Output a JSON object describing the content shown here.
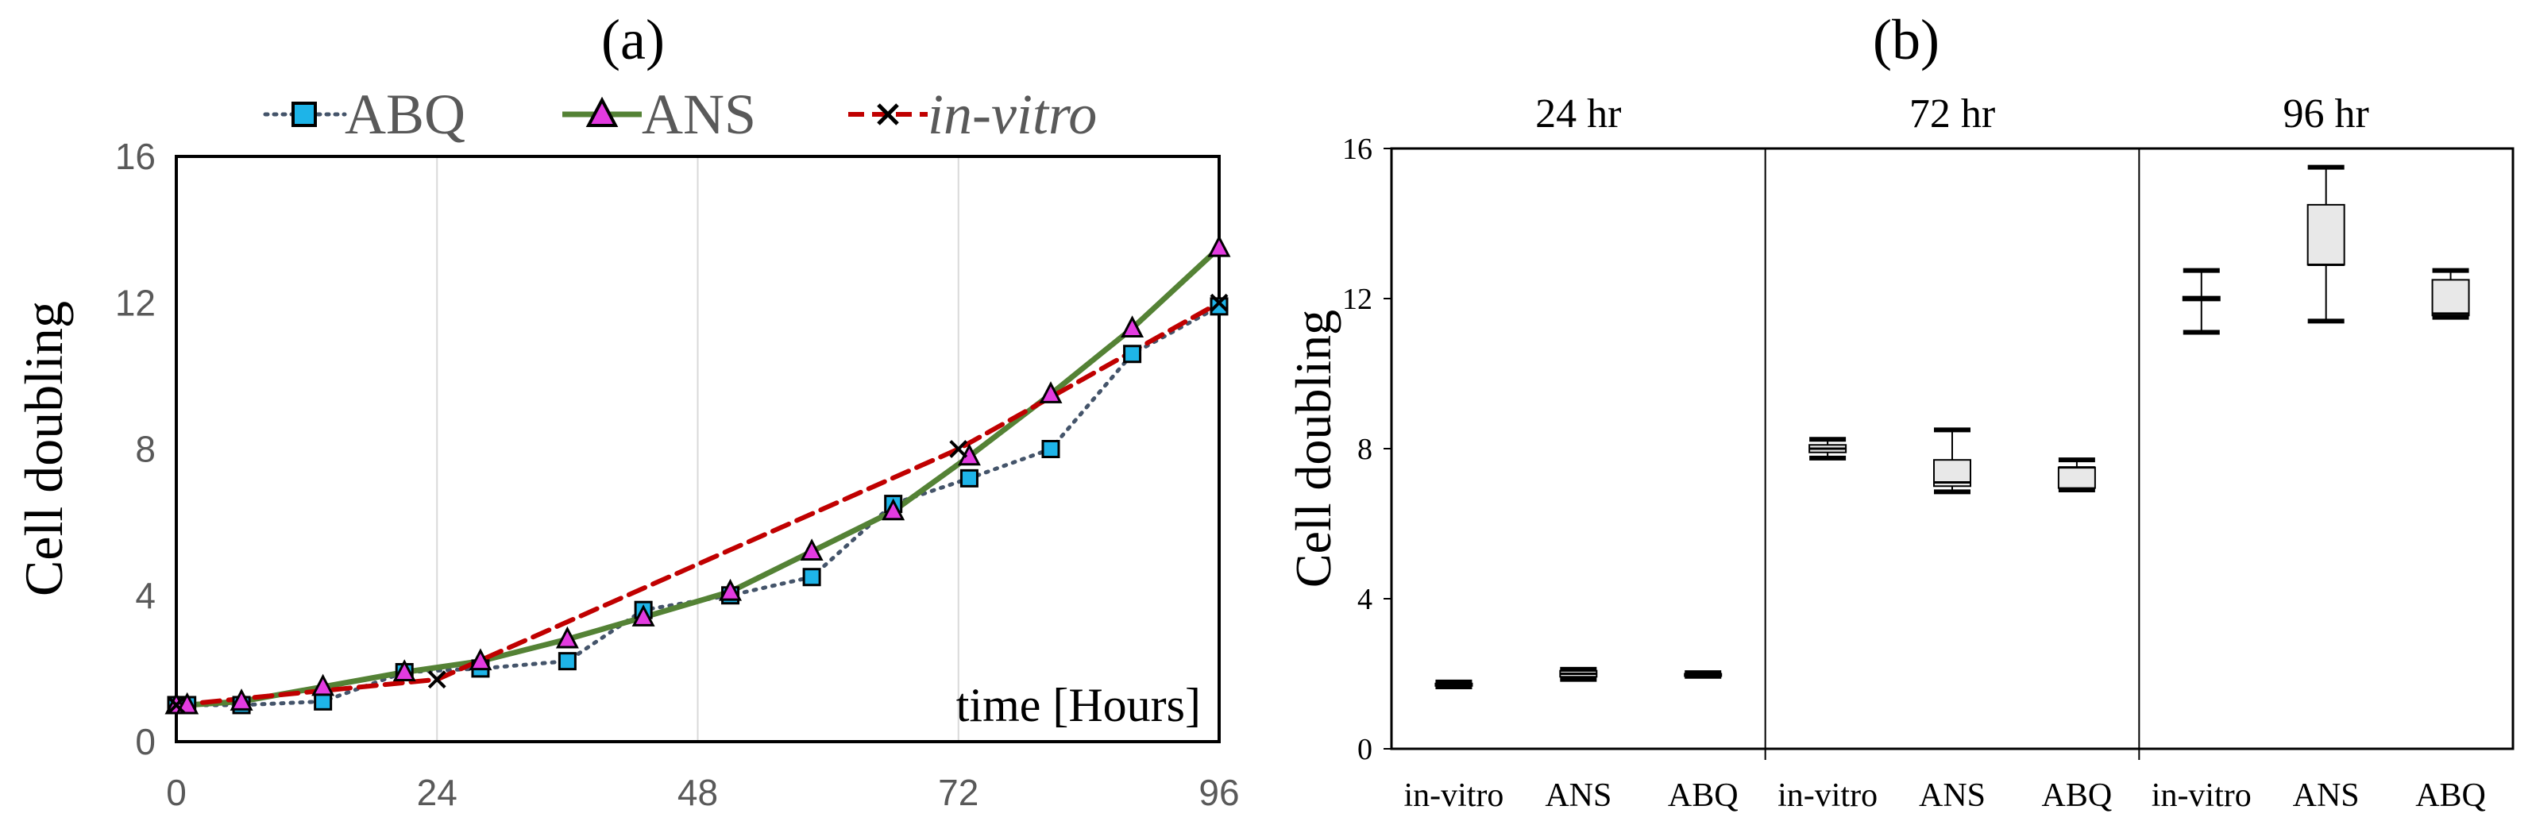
{
  "colors": {
    "abq_line": "#44546a",
    "abq_marker": "#1eb4e8",
    "ans_line": "#548235",
    "ans_marker": "#e33be0",
    "invitro_line": "#c00000",
    "axis": "#000000",
    "grid": "#d9d9d9",
    "tick_text": "#595959",
    "box_fill": "#e8e8e8"
  },
  "chart_data": [
    {
      "id": "a",
      "type": "line",
      "panel_label": "(a)",
      "xlabel": "time [Hours]",
      "ylabel": "Cell doubling",
      "xlim": [
        0,
        96
      ],
      "ylim": [
        0,
        16
      ],
      "xticks": [
        0,
        24,
        48,
        72,
        96
      ],
      "yticks": [
        0,
        4,
        8,
        12,
        16
      ],
      "xtick_labels": [
        "0",
        "24",
        "48",
        "72",
        "96"
      ],
      "ytick_labels": [
        "0",
        "4",
        "8",
        "12",
        "16"
      ],
      "legend_placement": "top",
      "series": [
        {
          "name": "ABQ",
          "style": "dotted",
          "marker": "square",
          "x": [
            0,
            1,
            6,
            13.5,
            21,
            28,
            36,
            43,
            51,
            58.5,
            66,
            73,
            80.5,
            88,
            96
          ],
          "y": [
            1.0,
            1.0,
            1.0,
            1.1,
            1.9,
            2.0,
            2.2,
            3.6,
            4.0,
            4.5,
            6.5,
            7.2,
            8.0,
            10.6,
            11.9
          ]
        },
        {
          "name": "ANS",
          "style": "solid",
          "marker": "triangle",
          "x": [
            0,
            1,
            6,
            13.5,
            21,
            28,
            36,
            43,
            51,
            58.5,
            66,
            73,
            80.5,
            88,
            96
          ],
          "y": [
            1.0,
            1.0,
            1.1,
            1.5,
            1.9,
            2.2,
            2.8,
            3.4,
            4.1,
            5.2,
            6.3,
            7.8,
            9.5,
            11.3,
            13.5
          ]
        },
        {
          "name": "in-vitro",
          "style": "dashed",
          "marker": "x",
          "x": [
            0,
            24,
            72,
            96
          ],
          "y": [
            1.0,
            1.7,
            8.0,
            12.0
          ]
        }
      ]
    },
    {
      "id": "b",
      "type": "box",
      "panel_label": "(b)",
      "ylabel": "Cell doubling",
      "ylim": [
        0,
        16
      ],
      "yticks": [
        0,
        4,
        8,
        12,
        16
      ],
      "ytick_labels": [
        "0",
        "4",
        "8",
        "12",
        "16"
      ],
      "groups": [
        {
          "title": "24 hr",
          "boxes": [
            {
              "label": "in-vitro",
              "min": 1.65,
              "q1": 1.7,
              "median": 1.72,
              "q3": 1.74,
              "max": 1.78
            },
            {
              "label": "ANS",
              "min": 1.85,
              "q1": 1.92,
              "median": 2.0,
              "q3": 2.08,
              "max": 2.12
            },
            {
              "label": "ABQ",
              "min": 1.93,
              "q1": 1.95,
              "median": 1.98,
              "q3": 2.0,
              "max": 2.03
            }
          ]
        },
        {
          "title": "72 hr",
          "boxes": [
            {
              "label": "in-vitro",
              "min": 7.75,
              "q1": 7.9,
              "median": 8.0,
              "q3": 8.1,
              "max": 8.25
            },
            {
              "label": "ANS",
              "min": 6.85,
              "q1": 7.0,
              "median": 7.1,
              "q3": 7.7,
              "max": 8.5
            },
            {
              "label": "ABQ",
              "min": 6.9,
              "q1": 6.95,
              "median": 7.5,
              "q3": 7.5,
              "max": 7.7
            }
          ]
        },
        {
          "title": "96 hr",
          "boxes": [
            {
              "label": "in-vitro",
              "min": 11.1,
              "q1": 11.95,
              "median": 12.0,
              "q3": 12.05,
              "max": 12.75
            },
            {
              "label": "ANS",
              "min": 11.4,
              "q1": 12.9,
              "median": 12.9,
              "q3": 14.5,
              "max": 15.5
            },
            {
              "label": "ABQ",
              "min": 11.5,
              "q1": 11.55,
              "median": 11.6,
              "q3": 12.5,
              "max": 12.75
            }
          ]
        }
      ]
    }
  ]
}
